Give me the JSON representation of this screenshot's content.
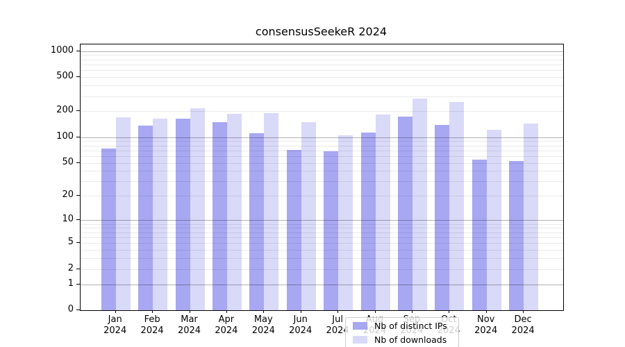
{
  "title": "consensusSeekeR 2024",
  "colors": {
    "distinct_ips_bar": "#a7a7f2",
    "downloads_bar": "#d9d9f8",
    "grid_major": "rgba(0,0,0,0.30)",
    "grid_minor": "rgba(0,0,0,0.082)",
    "axis": "#000000"
  },
  "legend": {
    "items": [
      {
        "label": "Nb of distinct IPs",
        "series_key": "distinct_ips"
      },
      {
        "label": "Nb of downloads",
        "series_key": "downloads"
      }
    ]
  },
  "chart_data": {
    "type": "bar",
    "title": "consensusSeekeR 2024",
    "x_categories": [
      "Jan",
      "Feb",
      "Mar",
      "Apr",
      "May",
      "Jun",
      "Jul",
      "Aug",
      "Sep",
      "Oct",
      "Nov",
      "Dec"
    ],
    "x_year": "2024",
    "series": [
      {
        "name": "Nb of distinct IPs",
        "color_key": "distinct_ips_bar",
        "values": [
          74,
          135,
          164,
          150,
          112,
          71,
          68,
          114,
          175,
          138,
          54,
          52
        ]
      },
      {
        "name": "Nb of downloads",
        "color_key": "downloads_bar",
        "values": [
          170,
          163,
          215,
          187,
          190,
          150,
          105,
          185,
          280,
          255,
          121,
          145
        ]
      }
    ],
    "yscale": "log1p",
    "yticks": [
      1000,
      500,
      200,
      100,
      50,
      20,
      10,
      5,
      2,
      1,
      0
    ],
    "ylim": [
      0,
      1190
    ],
    "grid": "both",
    "grid_major_at": [
      1,
      10,
      100,
      1000
    ],
    "legend_position": "lower center"
  }
}
